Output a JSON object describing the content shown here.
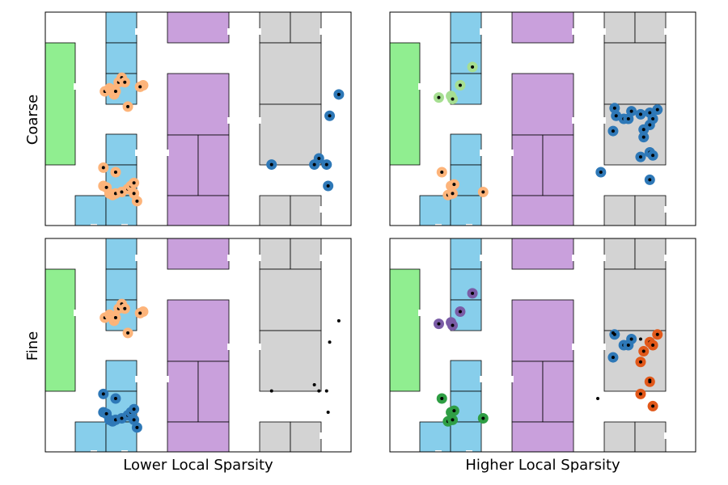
{
  "colors": {
    "room_blue": "#87CEEB",
    "room_purple": "#C9A0DC",
    "room_gray": "#D3D3D3",
    "room_green": "#90EE90",
    "light_orange": "#FDB47A",
    "light_green": "#A6DE91",
    "steel_blue": "#2E78B7",
    "purple": "#7A5CA6",
    "dark_orange": "#E1581A",
    "green": "#2F9E44",
    "point": "#000000"
  },
  "labels": {
    "row_top": "Coarse",
    "row_bottom": "Fine",
    "col_left": "Lower Local Sparsity",
    "col_right": "Higher Local Sparsity"
  },
  "chart_data": [
    {
      "type": "scatter",
      "panel": "Coarse / Lower Local Sparsity",
      "xlim": [
        0,
        100
      ],
      "ylim": [
        0,
        70
      ],
      "grid": false,
      "series": [
        {
          "color": "light_orange",
          "points": [
            [
              19.5,
              44
            ],
            [
              21,
              45
            ],
            [
              22,
              44.5
            ],
            [
              22.5,
              43
            ],
            [
              23,
              44
            ],
            [
              24,
              47
            ],
            [
              25,
              48.5
            ],
            [
              26,
              47
            ],
            [
              27,
              39
            ],
            [
              32,
              46
            ],
            [
              31,
              45.5
            ],
            [
              19,
              19
            ],
            [
              23,
              17.5
            ],
            [
              19,
              13
            ],
            [
              20,
              12.5
            ],
            [
              21,
              10.5
            ],
            [
              22,
              10
            ],
            [
              23,
              10.5
            ],
            [
              25,
              11
            ],
            [
              27,
              12
            ],
            [
              28,
              13
            ],
            [
              29,
              14
            ],
            [
              29,
              10.5
            ],
            [
              30,
              8
            ]
          ]
        },
        {
          "color": "steel_blue",
          "points": [
            [
              74,
              20
            ],
            [
              88,
              20
            ],
            [
              89.5,
              22
            ],
            [
              92,
              20
            ],
            [
              92.5,
              13
            ],
            [
              93,
              36
            ],
            [
              96,
              43
            ]
          ]
        }
      ]
    },
    {
      "type": "scatter",
      "panel": "Coarse / Higher Local Sparsity",
      "xlim": [
        0,
        100
      ],
      "ylim": [
        0,
        70
      ],
      "grid": false,
      "series": [
        {
          "color": "light_green",
          "points": [
            [
              16,
              42
            ],
            [
              20,
              42.5
            ],
            [
              20.5,
              41.5
            ],
            [
              23,
              46
            ],
            [
              27,
              52
            ]
          ]
        },
        {
          "color": "light_orange",
          "points": [
            [
              17,
              17.5
            ],
            [
              20,
              13
            ],
            [
              21,
              13.5
            ],
            [
              19,
              10
            ],
            [
              20.5,
              10.5
            ],
            [
              30.5,
              11
            ]
          ]
        },
        {
          "color": "steel_blue",
          "points": [
            [
              73.5,
              38.5
            ],
            [
              74,
              36
            ],
            [
              76.5,
              35
            ],
            [
              78,
              35
            ],
            [
              79,
              37.5
            ],
            [
              82,
              36.5
            ],
            [
              85,
              37
            ],
            [
              86,
              35
            ],
            [
              87.5,
              38
            ],
            [
              73,
              31
            ],
            [
              83,
              31.5
            ],
            [
              85,
              33
            ],
            [
              83,
              29
            ],
            [
              85,
              24
            ],
            [
              82,
              22.5
            ],
            [
              86,
              23
            ],
            [
              69,
              17.5
            ],
            [
              85,
              15
            ]
          ]
        }
      ]
    },
    {
      "type": "scatter",
      "panel": "Fine / Lower Local Sparsity",
      "xlim": [
        0,
        100
      ],
      "ylim": [
        0,
        70
      ],
      "grid": false,
      "series": [
        {
          "color": "light_orange",
          "points": [
            [
              19.5,
              44
            ],
            [
              21,
              45
            ],
            [
              22,
              44.5
            ],
            [
              22.5,
              43
            ],
            [
              23,
              44
            ],
            [
              24,
              47
            ],
            [
              25,
              48.5
            ],
            [
              26,
              47
            ],
            [
              27,
              39
            ],
            [
              32,
              46
            ],
            [
              31,
              45.5
            ]
          ]
        },
        {
          "color": "steel_blue",
          "points": [
            [
              19,
              19
            ],
            [
              23,
              17.5
            ],
            [
              19,
              13
            ],
            [
              20,
              12.5
            ],
            [
              21,
              10.5
            ],
            [
              22,
              10
            ],
            [
              23,
              10.5
            ],
            [
              25,
              11
            ],
            [
              27,
              12
            ],
            [
              28,
              13
            ],
            [
              29,
              14
            ],
            [
              29,
              10.5
            ],
            [
              30,
              8
            ]
          ]
        },
        {
          "color": "point",
          "points": [
            [
              74,
              20
            ],
            [
              88,
              22
            ],
            [
              89.5,
              20
            ],
            [
              92,
              20
            ],
            [
              92.5,
              13
            ],
            [
              93,
              36
            ],
            [
              96,
              43
            ]
          ]
        }
      ]
    },
    {
      "type": "scatter",
      "panel": "Fine / Higher Local Sparsity",
      "xlim": [
        0,
        100
      ],
      "ylim": [
        0,
        70
      ],
      "grid": false,
      "series": [
        {
          "color": "purple",
          "points": [
            [
              16,
              42
            ],
            [
              20,
              42.5
            ],
            [
              20.5,
              41.5
            ],
            [
              23,
              46
            ],
            [
              27,
              52
            ]
          ]
        },
        {
          "color": "green",
          "points": [
            [
              17,
              17.5
            ],
            [
              20,
              13
            ],
            [
              21,
              13.5
            ],
            [
              19,
              10
            ],
            [
              20.5,
              10.5
            ],
            [
              30.5,
              11
            ]
          ]
        },
        {
          "color": "steel_blue",
          "points": [
            [
              73.5,
              38.5
            ],
            [
              76.5,
              35
            ],
            [
              78,
              35
            ],
            [
              79,
              37
            ],
            [
              73,
              31
            ]
          ]
        },
        {
          "color": "dark_orange",
          "points": [
            [
              85,
              36
            ],
            [
              86,
              35
            ],
            [
              87.5,
              38.5
            ],
            [
              83,
              33
            ],
            [
              82,
              29.5
            ],
            [
              85,
              23
            ],
            [
              82,
              19
            ],
            [
              86,
              15
            ]
          ]
        },
        {
          "color": "point",
          "points": [
            [
              73,
              39
            ],
            [
              82,
              37
            ],
            [
              68,
              17.5
            ],
            [
              85,
              23.5
            ]
          ]
        }
      ]
    }
  ]
}
